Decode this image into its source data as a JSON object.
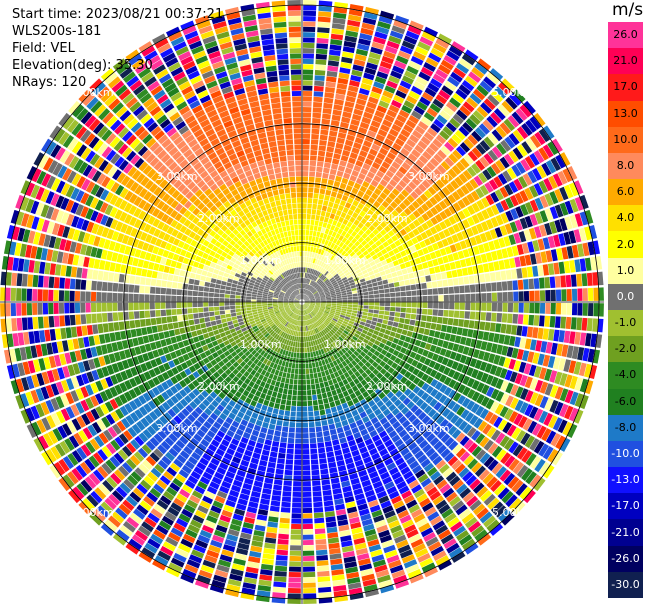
{
  "header": {
    "start_time": "Start time: 2023/08/21 00:37:21",
    "instrument": "WLS200s-181",
    "field": "Field: VEL",
    "elevation": "Elevation(deg): 35.30",
    "nrays": "NRays: 120"
  },
  "chart_data": {
    "type": "heatmap",
    "projection": "polar-ppi",
    "field": "VEL",
    "units": "m/s",
    "n_rays": 120,
    "range_rings_km": [
      1.0,
      2.0,
      3.0,
      5.0
    ],
    "range_ring_labels": [
      "1.00km",
      "2.00km",
      "3.00km",
      "5.00km"
    ],
    "colorbar": {
      "units": "m/s",
      "ticks": [
        "26.0",
        "21.0",
        "17.0",
        "13.0",
        "10.0",
        "8.0",
        "6.0",
        "4.0",
        "2.0",
        "1.0",
        "0.0",
        "-1.0",
        "-2.0",
        "-4.0",
        "-6.0",
        "-8.0",
        "-10.0",
        "-13.0",
        "-17.0",
        "-21.0",
        "-26.0",
        "-30.0"
      ],
      "colors": [
        "#ff3399",
        "#ff0055",
        "#ff1a1a",
        "#ff4d00",
        "#ff6a1a",
        "#ff8a5c",
        "#ffaa00",
        "#ffe000",
        "#ffff00",
        "#ffffa0",
        "#707070",
        "#a0c030",
        "#6fa020",
        "#2e8b22",
        "#208020",
        "#1e7ac8",
        "#2050e0",
        "#1010ff",
        "#0000c0",
        "#000090",
        "#000060",
        "#102050"
      ]
    },
    "pattern": {
      "positive_sector_deg": [
        -90,
        90
      ],
      "negative_sector_deg": [
        90,
        270
      ],
      "noise_start_km": 3.4
    }
  }
}
